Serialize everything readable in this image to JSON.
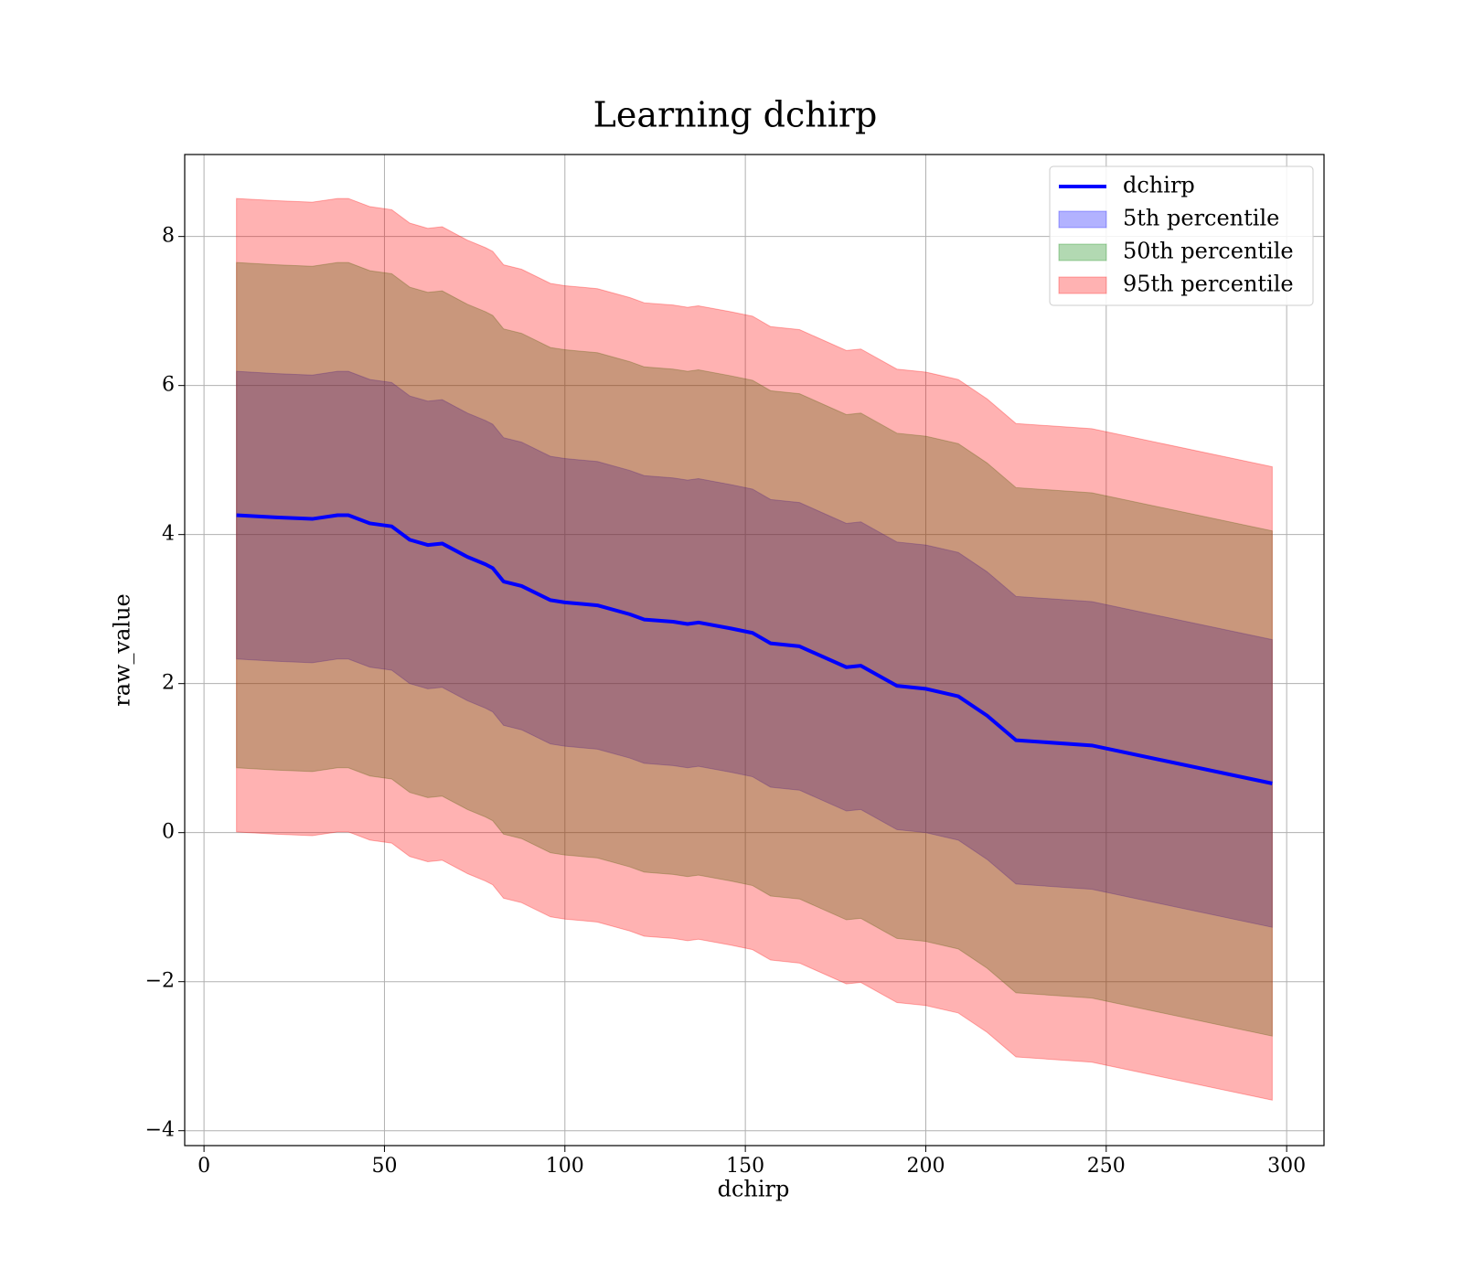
{
  "chart_data": {
    "type": "line",
    "title": "Learning dchirp",
    "x_label": "dchirp",
    "y_label": "raw_value",
    "x": [
      9,
      20,
      30,
      37,
      40,
      46,
      52,
      57,
      62,
      66,
      73,
      78,
      80,
      83,
      88,
      96,
      100,
      109,
      118,
      122,
      130,
      134,
      137,
      146,
      152,
      157,
      165,
      178,
      182,
      192,
      200,
      209,
      217,
      225,
      246,
      296
    ],
    "series": [
      {
        "name": "dchirp",
        "type": "line",
        "color": "#0000ff",
        "values": [
          4.26,
          4.23,
          4.21,
          4.26,
          4.26,
          4.15,
          4.11,
          3.93,
          3.86,
          3.88,
          3.7,
          3.6,
          3.55,
          3.37,
          3.31,
          3.12,
          3.09,
          3.05,
          2.93,
          2.86,
          2.83,
          2.8,
          2.82,
          2.74,
          2.68,
          2.54,
          2.5,
          2.22,
          2.24,
          1.97,
          1.93,
          1.83,
          1.57,
          1.24,
          1.17,
          0.66
        ]
      },
      {
        "name": "5th percentile",
        "type": "band",
        "color": "#0000ff",
        "upper": [
          6.19,
          6.16,
          6.14,
          6.19,
          6.19,
          6.08,
          6.04,
          5.86,
          5.79,
          5.81,
          5.63,
          5.53,
          5.48,
          5.3,
          5.24,
          5.05,
          5.02,
          4.98,
          4.86,
          4.79,
          4.76,
          4.73,
          4.75,
          4.67,
          4.61,
          4.47,
          4.43,
          4.15,
          4.17,
          3.9,
          3.86,
          3.76,
          3.5,
          3.17,
          3.1,
          2.59
        ],
        "lower": [
          2.33,
          2.3,
          2.28,
          2.33,
          2.33,
          2.22,
          2.18,
          2.0,
          1.93,
          1.95,
          1.77,
          1.67,
          1.62,
          1.44,
          1.38,
          1.19,
          1.16,
          1.12,
          1.0,
          0.93,
          0.9,
          0.87,
          0.89,
          0.81,
          0.75,
          0.61,
          0.57,
          0.29,
          0.31,
          0.04,
          0.0,
          -0.1,
          -0.36,
          -0.69,
          -0.76,
          -1.27
        ]
      },
      {
        "name": "50th percentile",
        "type": "band",
        "color": "#008000",
        "upper": [
          7.65,
          7.62,
          7.6,
          7.65,
          7.65,
          7.54,
          7.5,
          7.32,
          7.25,
          7.27,
          7.09,
          6.99,
          6.94,
          6.76,
          6.7,
          6.51,
          6.48,
          6.44,
          6.32,
          6.25,
          6.22,
          6.19,
          6.21,
          6.13,
          6.07,
          5.93,
          5.89,
          5.61,
          5.63,
          5.36,
          5.32,
          5.22,
          4.96,
          4.63,
          4.56,
          4.05
        ],
        "lower": [
          0.87,
          0.84,
          0.82,
          0.87,
          0.87,
          0.76,
          0.72,
          0.54,
          0.47,
          0.49,
          0.31,
          0.21,
          0.16,
          -0.02,
          -0.08,
          -0.27,
          -0.3,
          -0.34,
          -0.46,
          -0.53,
          -0.56,
          -0.59,
          -0.57,
          -0.65,
          -0.71,
          -0.85,
          -0.89,
          -1.17,
          -1.15,
          -1.42,
          -1.46,
          -1.56,
          -1.82,
          -2.15,
          -2.22,
          -2.73
        ]
      },
      {
        "name": "95th percentile",
        "type": "band",
        "color": "#ff0000",
        "upper": [
          8.51,
          8.48,
          8.46,
          8.51,
          8.51,
          8.4,
          8.36,
          8.18,
          8.11,
          8.13,
          7.95,
          7.85,
          7.8,
          7.62,
          7.56,
          7.37,
          7.34,
          7.3,
          7.18,
          7.11,
          7.08,
          7.05,
          7.07,
          6.99,
          6.93,
          6.79,
          6.75,
          6.47,
          6.49,
          6.22,
          6.18,
          6.08,
          5.82,
          5.49,
          5.42,
          4.91
        ],
        "lower": [
          0.01,
          -0.02,
          -0.04,
          0.01,
          0.01,
          -0.1,
          -0.14,
          -0.32,
          -0.39,
          -0.37,
          -0.55,
          -0.65,
          -0.7,
          -0.88,
          -0.94,
          -1.13,
          -1.16,
          -1.2,
          -1.32,
          -1.39,
          -1.42,
          -1.45,
          -1.43,
          -1.51,
          -1.57,
          -1.71,
          -1.75,
          -2.03,
          -2.01,
          -2.28,
          -2.32,
          -2.42,
          -2.68,
          -3.01,
          -3.08,
          -3.59
        ]
      }
    ],
    "band_opacity": 0.3,
    "xlim": [
      -5.35,
      310.35
    ],
    "ylim": [
      -4.2,
      9.1
    ],
    "xticks": [
      0,
      50,
      100,
      150,
      200,
      250,
      300
    ],
    "yticks": [
      {
        "value": -4,
        "label": "−4"
      },
      {
        "value": -2,
        "label": "−2"
      },
      0,
      2,
      4,
      6,
      8
    ],
    "grid": true,
    "legend": "upper right"
  }
}
